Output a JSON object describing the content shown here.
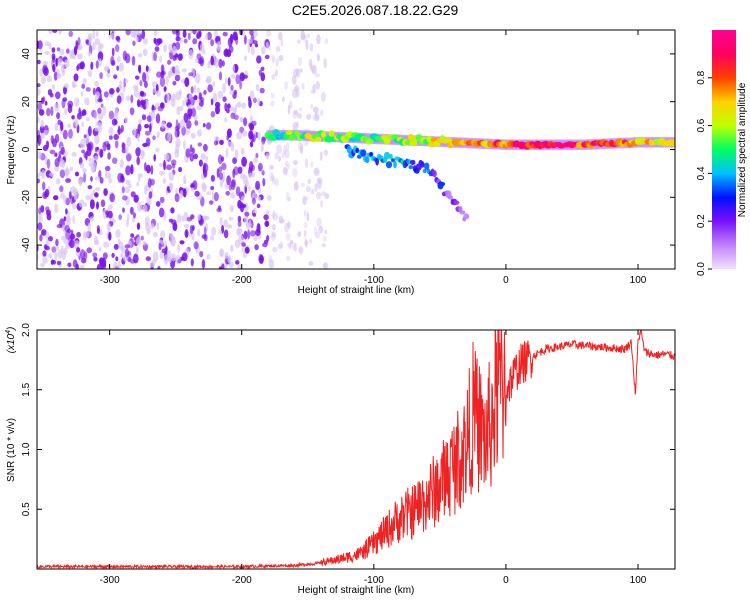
{
  "title": "C2E5.2026.087.18.22.G29",
  "colors": {
    "snr_line": "#ee2222",
    "axis": "#000000",
    "scatter_base": "#7a10e8",
    "scatter_light": "#d8c4f4"
  },
  "chart_data": [
    {
      "type": "heatmap",
      "title": "C2E5.2026.087.18.22.G29",
      "xlabel": "Height of straight line (km)",
      "ylabel": "Frequency (Hz)",
      "xlim": [
        -355,
        128
      ],
      "ylim": [
        -50,
        50
      ],
      "x_ticks": [
        -300,
        -200,
        -100,
        0,
        100
      ],
      "x_tick_labels": [
        "-300",
        "-200",
        "-100",
        "0",
        "100"
      ],
      "y_ticks": [
        -40,
        -20,
        0,
        20,
        40
      ],
      "y_tick_labels": [
        "-40",
        "-20",
        "0",
        "20",
        "40"
      ],
      "colorbar": {
        "label": "Normalized spectral amplitude",
        "range": [
          0,
          1
        ],
        "ticks": [
          0.0,
          0.2,
          0.4,
          0.6,
          0.8
        ],
        "tick_labels": [
          "0.0",
          "0.2",
          "0.4",
          "0.6",
          "0.8"
        ],
        "colors": [
          "#f4e0ff",
          "#c080ff",
          "#7a10ff",
          "#0010ff",
          "#00c0ff",
          "#00ff60",
          "#c0ff00",
          "#ffd000",
          "#ff4000",
          "#ff0060",
          "#ff0090"
        ]
      },
      "regions": [
        {
          "name": "noise",
          "x_range": [
            -355,
            -180
          ],
          "freq_range": [
            -50,
            50
          ],
          "amplitude": 0.08
        },
        {
          "name": "noise-fade",
          "x_range": [
            -180,
            -135
          ],
          "freq_range": [
            -50,
            50
          ],
          "amplitude": 0.04
        }
      ],
      "signal_ridge": [
        {
          "height": -180,
          "freq": 6,
          "amp": 0.45
        },
        {
          "height": -160,
          "freq": 6,
          "amp": 0.55
        },
        {
          "height": -140,
          "freq": 5.5,
          "amp": 0.6
        },
        {
          "height": -120,
          "freq": 5,
          "amp": 0.55
        },
        {
          "height": -100,
          "freq": 4.5,
          "amp": 0.5
        },
        {
          "height": -80,
          "freq": 4,
          "amp": 0.55
        },
        {
          "height": -60,
          "freq": 3.5,
          "amp": 0.6
        },
        {
          "height": -40,
          "freq": 3,
          "amp": 0.7
        },
        {
          "height": -20,
          "freq": 2.5,
          "amp": 0.75
        },
        {
          "height": 0,
          "freq": 2,
          "amp": 0.8
        },
        {
          "height": 20,
          "freq": 2,
          "amp": 0.9
        },
        {
          "height": 40,
          "freq": 2,
          "amp": 0.95
        },
        {
          "height": 60,
          "freq": 2,
          "amp": 0.8
        },
        {
          "height": 80,
          "freq": 2.5,
          "amp": 0.85
        },
        {
          "height": 100,
          "freq": 3,
          "amp": 0.7
        },
        {
          "height": 128,
          "freq": 3,
          "amp": 0.6
        }
      ],
      "secondary_branch": [
        {
          "height": -120,
          "freq": 0,
          "amp": 0.3
        },
        {
          "height": -100,
          "freq": -4,
          "amp": 0.35
        },
        {
          "height": -80,
          "freq": -5,
          "amp": 0.4
        },
        {
          "height": -60,
          "freq": -8,
          "amp": 0.3
        },
        {
          "height": -45,
          "freq": -18,
          "amp": 0.2
        },
        {
          "height": -30,
          "freq": -30,
          "amp": 0.1
        }
      ]
    },
    {
      "type": "line",
      "xlabel": "Height of straight line (km)",
      "ylabel": "SNR (10 * v/v)",
      "y_scale_label": "(x10",
      "y_scale_exponent": "4",
      "y_scale_suffix": ")",
      "xlim": [
        -355,
        128
      ],
      "ylim": [
        0,
        2.0
      ],
      "x_ticks": [
        -300,
        -200,
        -100,
        0,
        100
      ],
      "x_tick_labels": [
        "-300",
        "-200",
        "-100",
        "0",
        "100"
      ],
      "y_ticks": [
        0.5,
        1.0,
        1.5,
        2.0
      ],
      "y_tick_labels": [
        "0.5",
        "1.0",
        "1.5",
        "2.0"
      ],
      "series": [
        {
          "name": "SNR",
          "color": "#ee2222",
          "points": [
            [
              -355,
              0.02
            ],
            [
              -300,
              0.02
            ],
            [
              -250,
              0.02
            ],
            [
              -200,
              0.02
            ],
            [
              -160,
              0.03
            ],
            [
              -140,
              0.05
            ],
            [
              -125,
              0.08
            ],
            [
              -110,
              0.12
            ],
            [
              -100,
              0.2
            ],
            [
              -90,
              0.3
            ],
            [
              -80,
              0.4
            ],
            [
              -70,
              0.45
            ],
            [
              -60,
              0.55
            ],
            [
              -50,
              0.65
            ],
            [
              -40,
              0.8
            ],
            [
              -30,
              0.95
            ],
            [
              -25,
              1.2
            ],
            [
              -20,
              1.1
            ],
            [
              -15,
              1.0
            ],
            [
              -10,
              1.2
            ],
            [
              -5,
              1.45
            ],
            [
              0,
              1.5
            ],
            [
              5,
              1.6
            ],
            [
              10,
              1.7
            ],
            [
              20,
              1.78
            ],
            [
              30,
              1.84
            ],
            [
              40,
              1.86
            ],
            [
              50,
              1.88
            ],
            [
              60,
              1.87
            ],
            [
              70,
              1.86
            ],
            [
              80,
              1.85
            ],
            [
              90,
              1.84
            ],
            [
              95,
              1.9
            ],
            [
              98,
              1.45
            ],
            [
              100,
              1.9
            ],
            [
              102,
              2.0
            ],
            [
              105,
              1.82
            ],
            [
              110,
              1.8
            ],
            [
              115,
              1.79
            ],
            [
              120,
              1.8
            ],
            [
              128,
              1.78
            ]
          ]
        }
      ]
    }
  ]
}
